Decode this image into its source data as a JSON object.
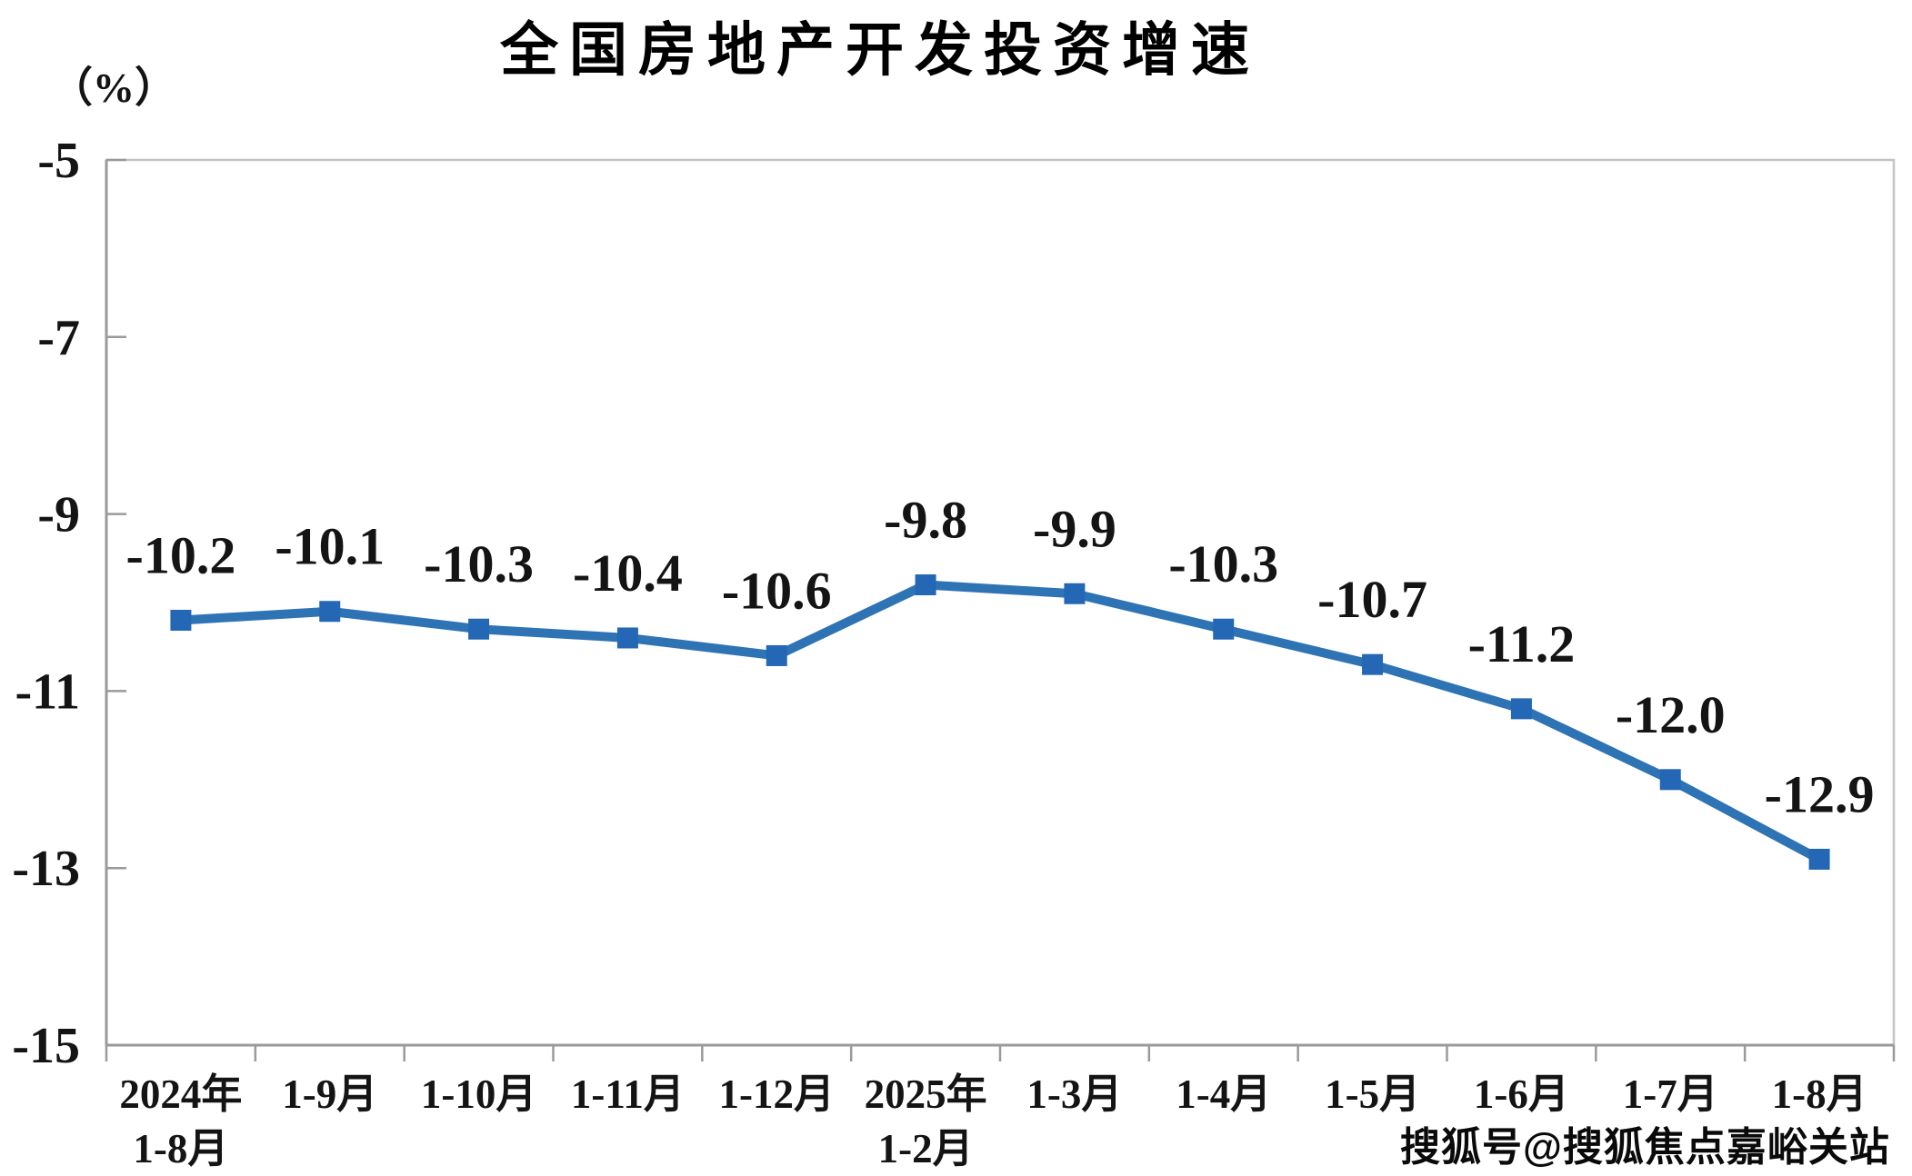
{
  "title": "全国房地产开发投资增速",
  "unit_label": "（%）",
  "watermark": "搜狐号@搜狐焦点嘉峪关站",
  "chart_data": {
    "type": "line",
    "title": "全国房地产开发投资增速",
    "ylabel": "（%）",
    "categories": [
      [
        "2024年",
        "1-8月"
      ],
      [
        "1-9月"
      ],
      [
        "1-10月"
      ],
      [
        "1-11月"
      ],
      [
        "1-12月"
      ],
      [
        "2025年",
        "1-2月"
      ],
      [
        "1-3月"
      ],
      [
        "1-4月"
      ],
      [
        "1-5月"
      ],
      [
        "1-6月"
      ],
      [
        "1-7月"
      ],
      [
        "1-8月"
      ]
    ],
    "values": [
      -10.2,
      -10.1,
      -10.3,
      -10.4,
      -10.6,
      -9.8,
      -9.9,
      -10.3,
      -10.7,
      -11.2,
      -12.0,
      -12.9
    ],
    "data_labels": [
      "-10.2",
      "-10.1",
      "-10.3",
      "-10.4",
      "-10.6",
      "-9.8",
      "-9.9",
      "-10.3",
      "-10.7",
      "-11.2",
      "-12.0",
      "-12.9"
    ],
    "ylim": [
      -15,
      -5
    ],
    "y_tick_labels": [
      "-5",
      "-7",
      "-9",
      "-11",
      "-13",
      "-15"
    ],
    "grid": "off",
    "legend": "none",
    "marker": "square",
    "colors": {
      "line": "#2E74B5",
      "marker": "#2467B4",
      "text": "#141414",
      "axis": "#9A9A9A",
      "border": "#C4C4C4"
    }
  }
}
